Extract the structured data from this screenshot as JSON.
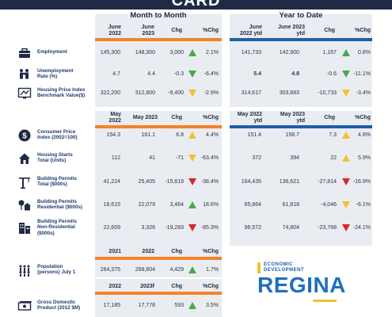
{
  "title": "CARD",
  "sections": {
    "month_to_month": "Month to Month",
    "year_to_date": "Year to Date"
  },
  "headers": {
    "a": {
      "m1": "June\n2022",
      "m2": "June\n2023",
      "m3": "Chg",
      "m4": "%Chg",
      "y1": "June\n2022 ytd",
      "y2": "June 2023\nytd",
      "y3": "Chg",
      "y4": "%Chg"
    },
    "b": {
      "m1": "May\n2022",
      "m2": "May 2023",
      "m3": "Chg",
      "m4": "%Chg",
      "y1": "May 2022\nytd",
      "y2": "May 2023\nytd",
      "y3": "Chg",
      "y4": "%Chg"
    },
    "c": {
      "m1": "2021",
      "m2": "2022",
      "m3": "Chg",
      "m4": "%Chg"
    },
    "d": {
      "m1": "2022",
      "m2": "2023f",
      "m3": "Chg",
      "m4": "%Chg"
    }
  },
  "rows": [
    {
      "icon": "briefcase-icon",
      "label": "Employment",
      "m": [
        "145,300",
        "148,300",
        "3,000",
        "2.1%"
      ],
      "m_trend": "up",
      "y": [
        "141,733",
        "142,900",
        "1,167",
        "0.8%"
      ],
      "y_trend": "up"
    },
    {
      "icon": "people-icon",
      "label": "Unemployment\nRate (%)",
      "m": [
        "4.7",
        "4.4",
        "-0.3",
        "-6.4%"
      ],
      "m_trend": "down-green",
      "y": [
        "5.4",
        "4.8",
        "-0.6",
        "-11.1%"
      ],
      "y_trend": "down-green"
    },
    {
      "icon": "house-price-icon",
      "label": "Housing Price Index\nBenchmark Value($)",
      "m": [
        "322,200",
        "312,800",
        "-9,400",
        "-2.9%"
      ],
      "m_trend": "down-yellow",
      "y": [
        "314,617",
        "303,883",
        "-10,733",
        "-3.4%"
      ],
      "y_trend": "down-yellow"
    },
    {
      "icon": "dollar-icon",
      "label": "Consumer Price\nIndex (2002=100)",
      "m": [
        "154.3",
        "161.1",
        "6.8",
        "4.4%"
      ],
      "m_trend": "up-yellow",
      "y": [
        "151.4",
        "158.7",
        "7.3",
        "4.8%"
      ],
      "y_trend": "up-yellow"
    },
    {
      "icon": "house-icon",
      "label": "Housing Starts\nTotal (Units)",
      "m": [
        "112",
        "41",
        "-71",
        "-63.4%"
      ],
      "m_trend": "down-yellow",
      "y": [
        "372",
        "394",
        "22",
        "5.9%"
      ],
      "y_trend": "up-yellow"
    },
    {
      "icon": "crane-icon",
      "label": "Building Permits\nTotal ($000s)",
      "m": [
        "41,224",
        "25,405",
        "-15,819",
        "-38.4%"
      ],
      "m_trend": "down-red",
      "y": [
        "164,435",
        "136,621",
        "-27,814",
        "-16.9%"
      ],
      "y_trend": "down-red"
    },
    {
      "icon": "houses-trees-icon",
      "label": "Building Permits\nResidential ($000s)",
      "m": [
        "18,615",
        "22,079",
        "3,464",
        "18.6%"
      ],
      "m_trend": "up",
      "y": [
        "65,864",
        "61,818",
        "-4,046",
        "-6.1%"
      ],
      "y_trend": "down-yellow"
    },
    {
      "icon": "buildings-icon",
      "label": "Building Permits\nNon-Residential\n($000s)",
      "m": [
        "22,609",
        "3,326",
        "-19,283",
        "-85.3%"
      ],
      "m_trend": "down-red",
      "y": [
        "98,572",
        "74,804",
        "-23,768",
        "-24.1%"
      ],
      "y_trend": "down-red"
    },
    {
      "icon": "population-icon",
      "label": "Population\n(persons) July 1",
      "m": [
        "264,375",
        "268,804",
        "4,429",
        "1.7%"
      ],
      "m_trend": "up"
    },
    {
      "icon": "gdp-icon",
      "label": "Gross Domestic\nProduct (2012 $M)",
      "m": [
        "17,185",
        "17,778",
        "593",
        "3.5%"
      ],
      "m_trend": "up"
    }
  ],
  "logo": {
    "line1": "ECONOMIC",
    "line2": "DEVELOPMENT",
    "name": "REGINA"
  },
  "colors": {
    "orange": "#f4832a",
    "blue": "#1f5fa8",
    "green": "#4aa84a",
    "yellow": "#f2c12e",
    "red": "#d7262b"
  }
}
